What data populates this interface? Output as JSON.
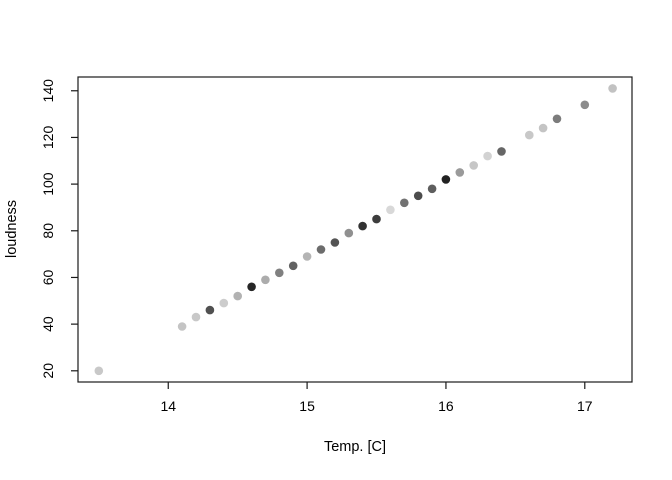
{
  "figure": {
    "background": "#ffffff",
    "axis_line_color": "#1a1a1a",
    "text_color": "#000000"
  },
  "chart_data": {
    "type": "scatter",
    "title": "",
    "xlabel": "Temp. [C]",
    "ylabel": "loudness",
    "xlim": [
      13.35,
      17.34
    ],
    "ylim": [
      15.2,
      145.9
    ],
    "x_ticks": [
      14,
      15,
      16,
      17
    ],
    "y_ticks": [
      20,
      40,
      60,
      80,
      100,
      120,
      140
    ],
    "grid": false,
    "legend_position": "none",
    "marker": "filled-circle",
    "points": [
      {
        "x": 13.5,
        "y": 20,
        "color": "#c8c8c8"
      },
      {
        "x": 14.1,
        "y": 39,
        "color": "#c4c4c4"
      },
      {
        "x": 14.2,
        "y": 43,
        "color": "#c8c8c8"
      },
      {
        "x": 14.3,
        "y": 46,
        "color": "#505050"
      },
      {
        "x": 14.4,
        "y": 49,
        "color": "#cccccc"
      },
      {
        "x": 14.5,
        "y": 52,
        "color": "#b2b2b2"
      },
      {
        "x": 14.6,
        "y": 56,
        "color": "#262626"
      },
      {
        "x": 14.7,
        "y": 59,
        "color": "#acacac"
      },
      {
        "x": 14.8,
        "y": 62,
        "color": "#808080"
      },
      {
        "x": 14.9,
        "y": 65,
        "color": "#626262"
      },
      {
        "x": 15.0,
        "y": 69,
        "color": "#b4b4b4"
      },
      {
        "x": 15.1,
        "y": 72,
        "color": "#6c6c6c"
      },
      {
        "x": 15.2,
        "y": 75,
        "color": "#545454"
      },
      {
        "x": 15.3,
        "y": 79,
        "color": "#909090"
      },
      {
        "x": 15.4,
        "y": 82,
        "color": "#323232"
      },
      {
        "x": 15.5,
        "y": 85,
        "color": "#3c3c3c"
      },
      {
        "x": 15.6,
        "y": 89,
        "color": "#d8d8d8"
      },
      {
        "x": 15.7,
        "y": 92,
        "color": "#727272"
      },
      {
        "x": 15.8,
        "y": 95,
        "color": "#4c4c4c"
      },
      {
        "x": 15.9,
        "y": 98,
        "color": "#5e5e5e"
      },
      {
        "x": 16.0,
        "y": 102,
        "color": "#222222"
      },
      {
        "x": 16.1,
        "y": 105,
        "color": "#9a9a9a"
      },
      {
        "x": 16.2,
        "y": 108,
        "color": "#c6c6c6"
      },
      {
        "x": 16.3,
        "y": 112,
        "color": "#d2d2d2"
      },
      {
        "x": 16.4,
        "y": 114,
        "color": "#666666"
      },
      {
        "x": 16.6,
        "y": 121,
        "color": "#c8c8c8"
      },
      {
        "x": 16.7,
        "y": 124,
        "color": "#c4c4c4"
      },
      {
        "x": 16.8,
        "y": 128,
        "color": "#7c7c7c"
      },
      {
        "x": 17.0,
        "y": 134,
        "color": "#8c8c8c"
      },
      {
        "x": 17.2,
        "y": 141,
        "color": "#c2c2c2"
      }
    ]
  }
}
